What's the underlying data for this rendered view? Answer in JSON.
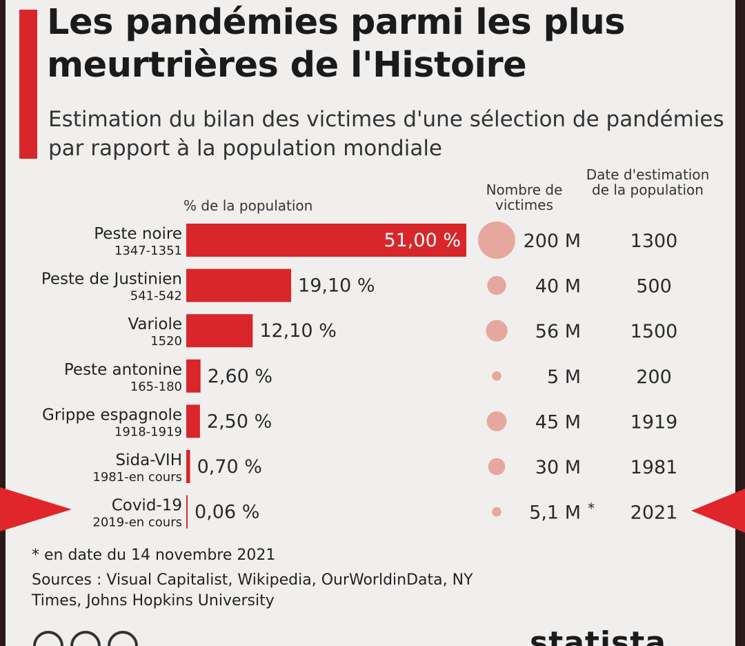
{
  "header": {
    "title": "Les pandémies parmi les plus meurtrières de l'Histoire",
    "subtitle": "Estimation du bilan des victimes d'une sélection de pandémies par rapport à la population mondiale"
  },
  "columns": {
    "pct_label": "% de la population",
    "victims_label": "Nombre de victimes",
    "date_label": "Date d'estimation de la population"
  },
  "chart_data": {
    "type": "bar",
    "orientation": "horizontal",
    "categories": [
      "Peste noire",
      "Peste de Justinien",
      "Variole",
      "Peste antonine",
      "Grippe espagnole",
      "Sida-VIH",
      "Covid-19"
    ],
    "periods": [
      "1347-1351",
      "541-542",
      "1520",
      "165-180",
      "1918-1919",
      "1981-en cours",
      "2019-en cours"
    ],
    "values": [
      51.0,
      19.1,
      12.1,
      2.6,
      2.5,
      0.7,
      0.06
    ],
    "value_labels": [
      "51,00 %",
      "19,10 %",
      "12,10 %",
      "2,60 %",
      "2,50 %",
      "0,70 %",
      "0,06 %"
    ],
    "victims_millions": [
      200,
      40,
      56,
      5,
      45,
      30,
      5.1
    ],
    "victims_labels": [
      "200 M",
      "40 M",
      "56 M",
      "5 M",
      "45 M",
      "30 M",
      "5,1 M *"
    ],
    "estimation_years": [
      "1300",
      "500",
      "1500",
      "200",
      "1919",
      "1981",
      "2021"
    ],
    "bar_color": "#d8262a",
    "bubble_color": "#e6a89e"
  },
  "footer": {
    "footnote": "* en date du 14 novembre 2021",
    "sources": "Sources : Visual Capitalist, Wikipedia, OurWorldinData, NY Times, Johns Hopkins University",
    "brand": "statista"
  },
  "colors": {
    "accent": "#d8262a",
    "arrow": "#e0262a",
    "background": "#f1efed"
  }
}
